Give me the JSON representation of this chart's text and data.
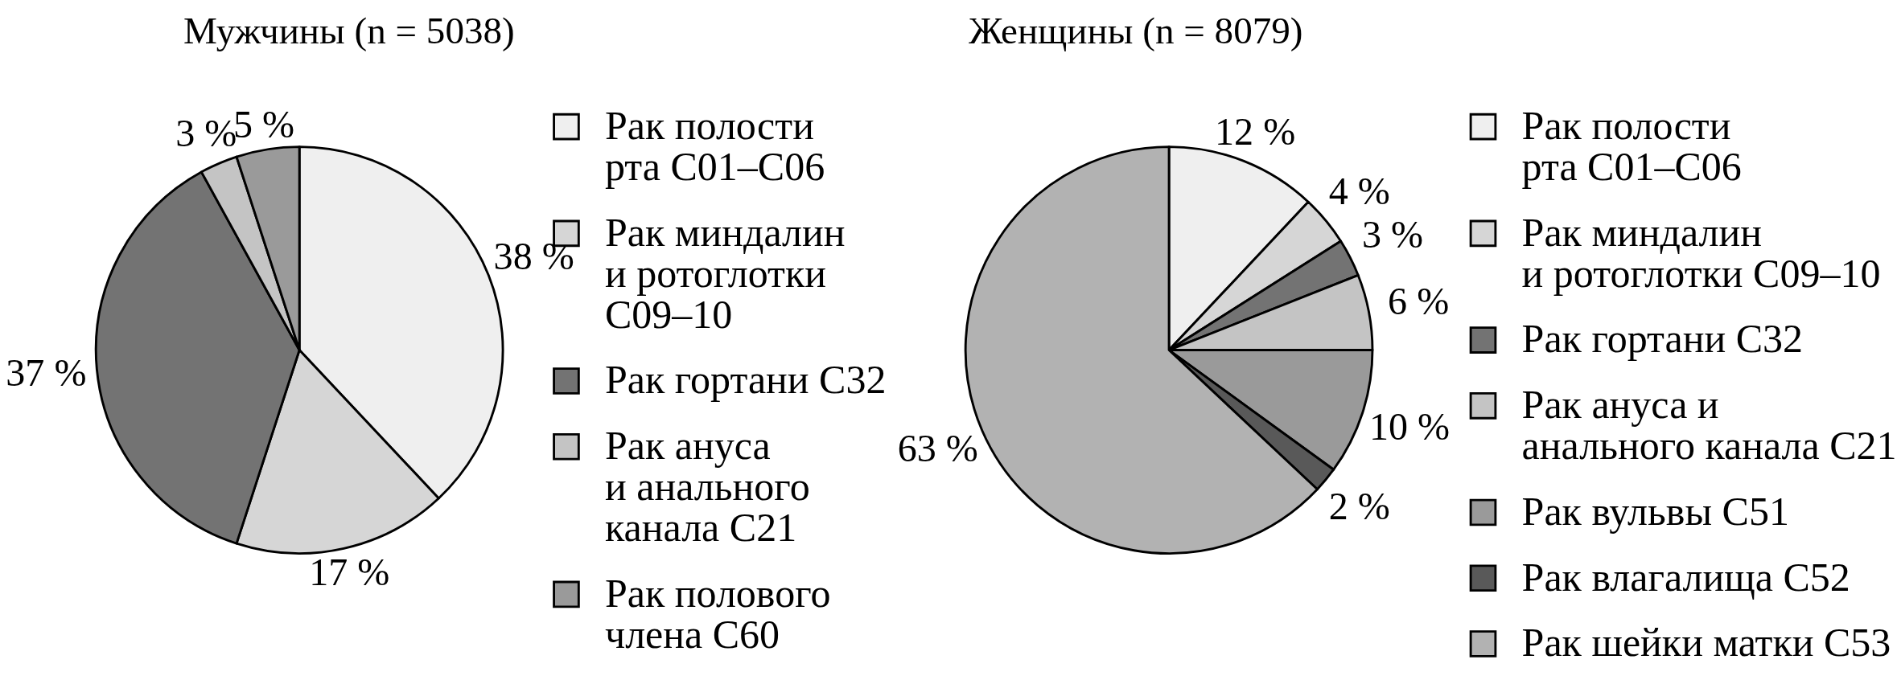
{
  "chart_data": [
    {
      "type": "pie",
      "title": "Мужчины (n = 5038)",
      "categories": [
        "Рак полости\nрта C01–C06",
        "Рак миндалин\nи ротоглотки\nC09–10",
        "Рак гортани C32",
        "Рак ануса\nи анального\nканала C21",
        "Рак полового\nчлена C60"
      ],
      "values": [
        38,
        17,
        37,
        3,
        5
      ],
      "value_labels": [
        "38 %",
        "17 %",
        "37 %",
        "3 %",
        "5 %"
      ],
      "colors": [
        "#efefef",
        "#d6d6d6",
        "#737373",
        "#c4c4c4",
        "#9a9a9a"
      ],
      "legend": "right"
    },
    {
      "type": "pie",
      "title": "Женщины (n = 8079)",
      "categories": [
        "Рак полости\nрта C01–C06",
        "Рак миндалин\nи ротоглотки C09–10",
        "Рак гортани C32",
        "Рак ануса и\nанального канала C21",
        "Рак вульвы C51",
        "Рак влагалища C52",
        "Рак шейки матки C53"
      ],
      "values": [
        12,
        4,
        3,
        6,
        10,
        2,
        63
      ],
      "value_labels": [
        "12 %",
        "4 %",
        "3 %",
        "6 %",
        "10 %",
        "2 %",
        "63 %"
      ],
      "colors": [
        "#efefef",
        "#d6d6d6",
        "#737373",
        "#c4c4c4",
        "#9a9a9a",
        "#595959",
        "#b2b2b2"
      ],
      "legend": "right"
    }
  ]
}
